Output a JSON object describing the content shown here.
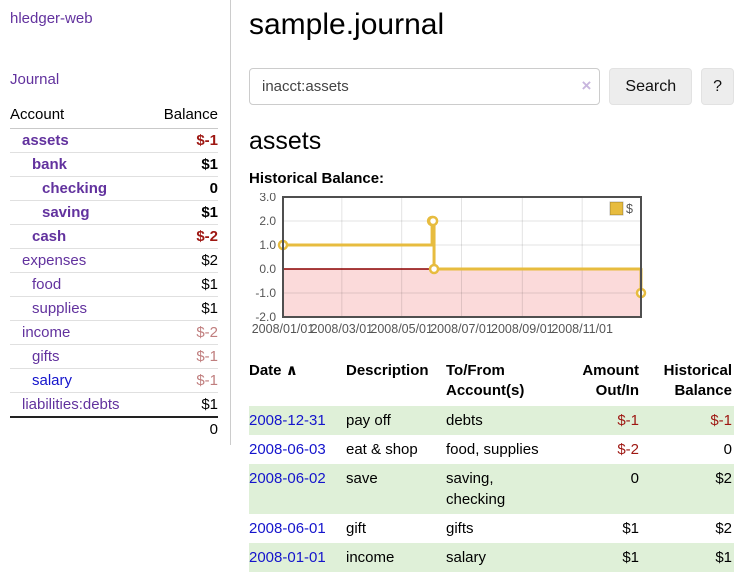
{
  "app": {
    "brand": "hledger-web",
    "nav_journal": "Journal"
  },
  "colors": {
    "link_purple": "#62329e",
    "link_blue": "#1414cc",
    "negative_strong": "#9e1712",
    "negative_soft": "#c07e7e",
    "row_stripe_green": "#dff0d8",
    "chart_line_gold": "#e7bc3f",
    "chart_negative_pink": "#fbdada",
    "chart_zero_line": "#8b0000"
  },
  "sidebar": {
    "headers": {
      "account": "Account",
      "balance": "Balance"
    },
    "rows": [
      {
        "label": "assets",
        "balance": "$-1"
      },
      {
        "label": "bank",
        "balance": "$1"
      },
      {
        "label": "checking",
        "balance": "0"
      },
      {
        "label": "saving",
        "balance": "$1"
      },
      {
        "label": "cash",
        "balance": "$-2"
      },
      {
        "label": "expenses",
        "balance": "$2"
      },
      {
        "label": "food",
        "balance": "$1"
      },
      {
        "label": "supplies",
        "balance": "$1"
      },
      {
        "label": "income",
        "balance": "$-2"
      },
      {
        "label": "gifts",
        "balance": "$-1"
      },
      {
        "label": "salary",
        "balance": "$-1"
      },
      {
        "label": "liabilities:debts",
        "balance": "$1"
      }
    ],
    "total": "0"
  },
  "main": {
    "title": "sample.journal",
    "search": {
      "value": "inacct:assets",
      "clear_icon": "×",
      "button": "Search",
      "help_button": "?"
    },
    "account_heading": "assets",
    "chart_label": "Historical Balance:",
    "chart_data": {
      "type": "line",
      "mode": "steps",
      "title": "Historical Balance",
      "series": [
        {
          "name": "$",
          "color": "#e7bc3f",
          "points": [
            [
              "2008-01-01",
              1
            ],
            [
              "2008-06-01",
              2
            ],
            [
              "2008-06-02",
              2
            ],
            [
              "2008-06-03",
              0
            ],
            [
              "2008-12-31",
              -1
            ]
          ]
        }
      ],
      "x_range": [
        "2008-01-01",
        "2008-12-31"
      ],
      "x_ticks": [
        "2008/01/01",
        "2008/03/01",
        "2008/05/01",
        "2008/07/01",
        "2008/09/01",
        "2008/11/01"
      ],
      "y_ticks": [
        "3.0",
        "2.0",
        "1.0",
        "0.0",
        "-1.0",
        "-2.0"
      ],
      "y_tick_values": [
        3,
        2,
        1,
        0,
        -1,
        -2
      ],
      "ylim": [
        -2,
        3
      ],
      "grid": true,
      "legend": {
        "label": "$",
        "position": "top-right"
      },
      "negative_region_color": "#fbdada",
      "zero_line_color": "#8b0000"
    },
    "register": {
      "headers": {
        "date": "Date",
        "sort_icon": "∧",
        "description": "Description",
        "account": "To/From Account(s)",
        "amount": "Amount Out/In",
        "balance": "Historical Balance"
      },
      "rows": [
        {
          "date": "2008-12-31",
          "description": "pay off",
          "accounts": "debts",
          "amount": "$-1",
          "balance": "$-1"
        },
        {
          "date": "2008-06-03",
          "description": "eat & shop",
          "accounts": "food, supplies",
          "amount": "$-2",
          "balance": "0"
        },
        {
          "date": "2008-06-02",
          "description": "save",
          "accounts": "saving, checking",
          "amount": "0",
          "balance": "$2"
        },
        {
          "date": "2008-06-01",
          "description": "gift",
          "accounts": "gifts",
          "amount": "$1",
          "balance": "$2"
        },
        {
          "date": "2008-01-01",
          "description": "income",
          "accounts": "salary",
          "amount": "$1",
          "balance": "$1"
        }
      ]
    }
  }
}
